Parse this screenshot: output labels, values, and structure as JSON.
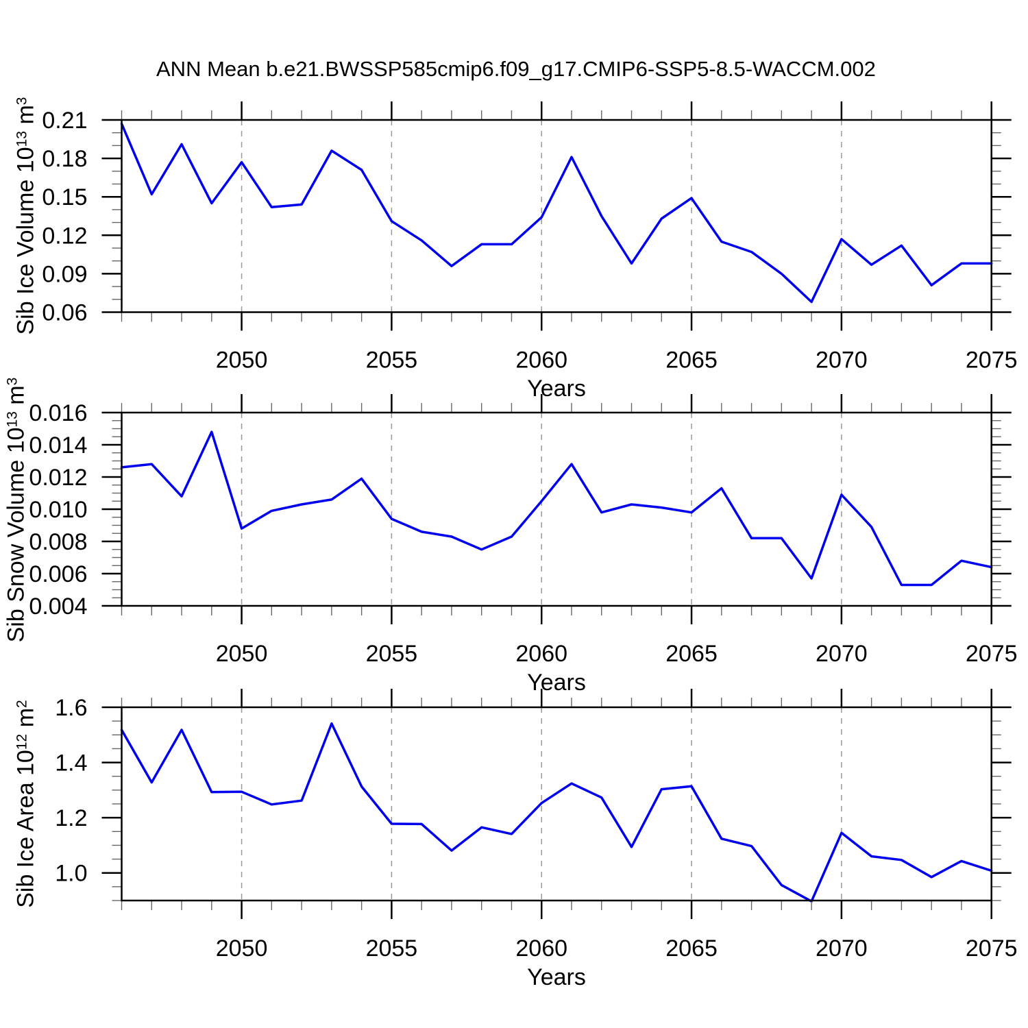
{
  "title": "ANN Mean b.e21.BWSSP585cmip6.f09_g17.CMIP6-SSP5-8.5-WACCM.002",
  "colors": {
    "line": "#0000EE",
    "grid": "#999999",
    "axis": "#000000",
    "minor_tick": "#666666"
  },
  "chart_data": [
    {
      "type": "line",
      "title": "",
      "xlabel": "Years",
      "ylabel": "Sib Ice Volume 10^13 m^3",
      "ylabel_parts": {
        "base": "Sib Ice Volume 10",
        "sup1": "13",
        "mid": " m",
        "sup2": "3"
      },
      "xlim": [
        2046,
        2075
      ],
      "ylim": [
        0.06,
        0.21
      ],
      "x": [
        2046,
        2047,
        2048,
        2049,
        2050,
        2051,
        2052,
        2053,
        2054,
        2055,
        2056,
        2057,
        2058,
        2059,
        2060,
        2061,
        2062,
        2063,
        2064,
        2065,
        2066,
        2067,
        2068,
        2069,
        2070,
        2071,
        2072,
        2073,
        2074,
        2075
      ],
      "values": [
        0.207,
        0.152,
        0.191,
        0.145,
        0.177,
        0.142,
        0.144,
        0.186,
        0.171,
        0.131,
        0.116,
        0.096,
        0.113,
        0.113,
        0.134,
        0.181,
        0.135,
        0.098,
        0.133,
        0.149,
        0.115,
        0.107,
        0.09,
        0.068,
        0.117,
        0.097,
        0.112,
        0.081,
        0.098,
        0.098
      ],
      "ytick_values": [
        0.06,
        0.09,
        0.12,
        0.15,
        0.18,
        0.21
      ],
      "ytick_labels": [
        "0.06",
        "0.09",
        "0.12",
        "0.15",
        "0.18",
        "0.21"
      ],
      "y_minor_step": 0.01,
      "xtick_values": [
        2050,
        2055,
        2060,
        2065,
        2070,
        2075
      ],
      "xtick_labels": [
        "2050",
        "2055",
        "2060",
        "2065",
        "2070",
        "2075"
      ],
      "x_minor_step": 1,
      "gridline_x": [
        2050,
        2055,
        2060,
        2065,
        2070
      ],
      "grid": "vertical-dashed",
      "legend": "none"
    },
    {
      "type": "line",
      "title": "",
      "xlabel": "Years",
      "ylabel": "Sib Snow Volume 10^13 m^3",
      "ylabel_parts": {
        "base": "Sib Snow Volume 10",
        "sup1": "13",
        "mid": " m",
        "sup2": "3"
      },
      "xlim": [
        2046,
        2075
      ],
      "ylim": [
        0.004,
        0.016
      ],
      "x": [
        2046,
        2047,
        2048,
        2049,
        2050,
        2051,
        2052,
        2053,
        2054,
        2055,
        2056,
        2057,
        2058,
        2059,
        2060,
        2061,
        2062,
        2063,
        2064,
        2065,
        2066,
        2067,
        2068,
        2069,
        2070,
        2071,
        2072,
        2073,
        2074,
        2075
      ],
      "values": [
        0.0126,
        0.0128,
        0.0108,
        0.0148,
        0.0088,
        0.0099,
        0.0103,
        0.0106,
        0.0119,
        0.0094,
        0.0086,
        0.0083,
        0.0075,
        0.0083,
        0.0105,
        0.0128,
        0.0098,
        0.0103,
        0.0101,
        0.0098,
        0.0113,
        0.0082,
        0.0082,
        0.0057,
        0.0109,
        0.0089,
        0.0053,
        0.0053,
        0.0068,
        0.0064
      ],
      "ytick_values": [
        0.004,
        0.006,
        0.008,
        0.01,
        0.012,
        0.014,
        0.016
      ],
      "ytick_labels": [
        "0.004",
        "0.006",
        "0.008",
        "0.010",
        "0.012",
        "0.014",
        "0.016"
      ],
      "y_minor_step": 0.0005,
      "xtick_values": [
        2050,
        2055,
        2060,
        2065,
        2070,
        2075
      ],
      "xtick_labels": [
        "2050",
        "2055",
        "2060",
        "2065",
        "2070",
        "2075"
      ],
      "x_minor_step": 1,
      "gridline_x": [
        2050,
        2055,
        2060,
        2065,
        2070
      ],
      "grid": "vertical-dashed",
      "legend": "none"
    },
    {
      "type": "line",
      "title": "",
      "xlabel": "Years",
      "ylabel": "Sib Ice Area 10^12 m^2",
      "ylabel_parts": {
        "base": "Sib Ice Area 10",
        "sup1": "12",
        "mid": " m",
        "sup2": "2"
      },
      "xlim": [
        2046,
        2075
      ],
      "ylim": [
        0.9,
        1.6
      ],
      "x": [
        2046,
        2047,
        2048,
        2049,
        2050,
        2051,
        2052,
        2053,
        2054,
        2055,
        2056,
        2057,
        2058,
        2059,
        2060,
        2061,
        2062,
        2063,
        2064,
        2065,
        2066,
        2067,
        2068,
        2069,
        2070,
        2071,
        2072,
        2073,
        2074,
        2075
      ],
      "values": [
        1.518,
        1.328,
        1.518,
        1.293,
        1.294,
        1.248,
        1.262,
        1.541,
        1.313,
        1.178,
        1.177,
        1.081,
        1.165,
        1.141,
        1.253,
        1.324,
        1.273,
        1.094,
        1.303,
        1.314,
        1.124,
        1.097,
        0.956,
        0.897,
        1.145,
        1.06,
        1.047,
        0.985,
        1.043,
        1.008
      ],
      "ytick_values": [
        1.0,
        1.2,
        1.4,
        1.6
      ],
      "ytick_labels": [
        "1.0",
        "1.2",
        "1.4",
        "1.6"
      ],
      "y_minor_step": 0.05,
      "xtick_values": [
        2050,
        2055,
        2060,
        2065,
        2070,
        2075
      ],
      "xtick_labels": [
        "2050",
        "2055",
        "2060",
        "2065",
        "2070",
        "2075"
      ],
      "x_minor_step": 1,
      "gridline_x": [
        2050,
        2055,
        2060,
        2065,
        2070
      ],
      "grid": "vertical-dashed",
      "legend": "none"
    }
  ]
}
